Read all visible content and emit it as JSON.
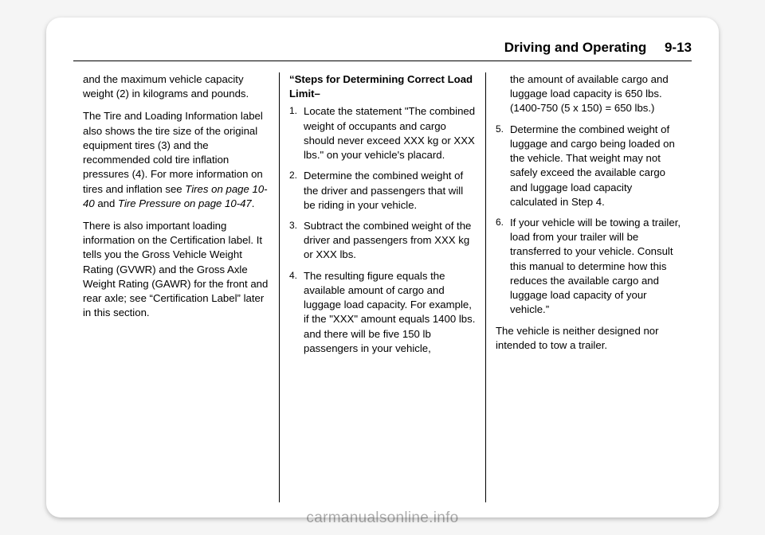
{
  "header": {
    "section": "Driving and Operating",
    "page_number": "9-13"
  },
  "column1": {
    "p1": "and the maximum vehicle capacity weight (2) in kilograms and pounds.",
    "p2_a": "The Tire and Loading Information label also shows the tire size of the original equipment tires (3) and the recommended cold tire inflation pressures (4). For more information on tires and inflation see ",
    "p2_b": "Tires on page 10-40",
    "p2_c": " and ",
    "p2_d": "Tire Pressure on page 10-47",
    "p2_e": ".",
    "p3": "There is also important loading information on the Certification label. It tells you the Gross Vehicle Weight Rating (GVWR) and the Gross Axle Weight Rating (GAWR) for the front and rear axle; see “Certification Label” later in this section."
  },
  "column2": {
    "heading": "“Steps for Determining Correct Load Limit–",
    "steps": [
      "Locate the statement \"The combined weight of occupants and cargo should never exceed XXX kg or XXX lbs.\" on your vehicle's placard.",
      "Determine the combined weight of the driver and passengers that will be riding in your vehicle.",
      "Subtract the combined weight of the driver and passengers from XXX kg or XXX lbs.",
      "The resulting figure equals the available amount of cargo and luggage load capacity. For example, if the \"XXX\" amount equals 1400 lbs. and there will be five 150 lb passengers in your vehicle,"
    ]
  },
  "column3": {
    "step4_cont": "the amount of available cargo and luggage load capacity is 650 lbs. (1400-750 (5 x 150) = 650 lbs.)",
    "steps": [
      {
        "n": "5.",
        "t": "Determine the combined weight of luggage and cargo being loaded on the vehicle. That weight may not safely exceed the available cargo and luggage load capacity calculated in Step 4."
      },
      {
        "n": "6.",
        "t": "If your vehicle will be towing a trailer, load from your trailer will be transferred to your vehicle. Consult this manual to determine how this reduces the available cargo and luggage load capacity of your vehicle.”"
      }
    ],
    "closing": "The vehicle is neither designed nor intended to tow a trailer."
  },
  "watermark": "carmanualsonline.info"
}
